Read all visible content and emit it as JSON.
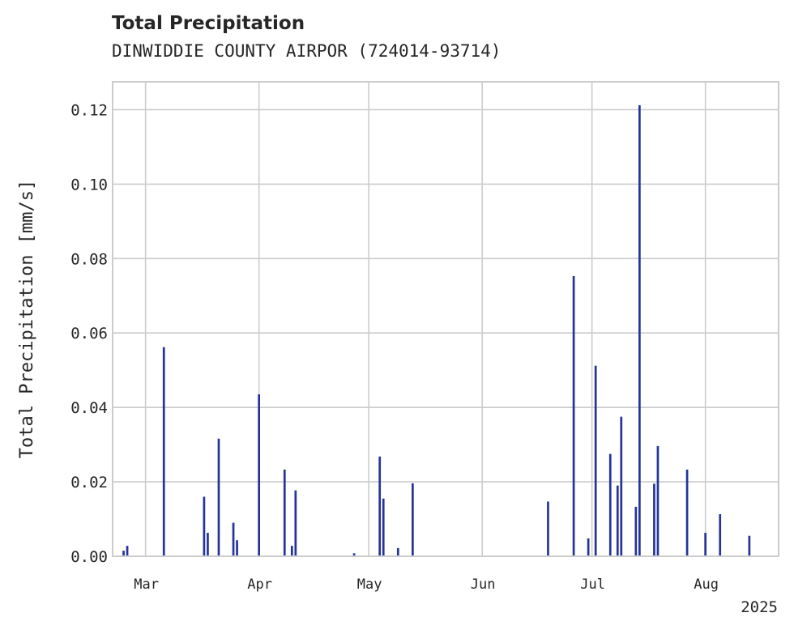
{
  "chart_data": {
    "type": "bar",
    "title": "Total Precipitation",
    "subtitle": "DINWIDDIE COUNTY AIRPOR (724014-93714)",
    "ylabel": "Total Precipitation [mm/s]",
    "xlabel": "",
    "year_label": "2025",
    "xlim": [
      "2025-02-20",
      "2025-08-21"
    ],
    "ylim": [
      0,
      0.1275
    ],
    "yticks": [
      0.0,
      0.02,
      0.04,
      0.06,
      0.08,
      0.1,
      0.12
    ],
    "ytick_labels": [
      "0.00",
      "0.02",
      "0.04",
      "0.06",
      "0.08",
      "0.10",
      "0.12"
    ],
    "xticks": [
      "2025-03-01",
      "2025-04-01",
      "2025-05-01",
      "2025-06-01",
      "2025-07-01",
      "2025-08-01"
    ],
    "xtick_labels": [
      "Mar",
      "Apr",
      "May",
      "Jun",
      "Jul",
      "Aug"
    ],
    "grid": true,
    "color": "#26349a",
    "points": [
      {
        "x": "2025-02-23",
        "y": 0.0015
      },
      {
        "x": "2025-02-24",
        "y": 0.0028
      },
      {
        "x": "2025-03-06",
        "y": 0.0562
      },
      {
        "x": "2025-03-17",
        "y": 0.016
      },
      {
        "x": "2025-03-18",
        "y": 0.0063
      },
      {
        "x": "2025-03-21",
        "y": 0.0316
      },
      {
        "x": "2025-03-25",
        "y": 0.009
      },
      {
        "x": "2025-03-26",
        "y": 0.0043
      },
      {
        "x": "2025-04-01",
        "y": 0.0435
      },
      {
        "x": "2025-04-08",
        "y": 0.0233
      },
      {
        "x": "2025-04-10",
        "y": 0.0028
      },
      {
        "x": "2025-04-11",
        "y": 0.0177
      },
      {
        "x": "2025-04-27",
        "y": 0.0008
      },
      {
        "x": "2025-05-04",
        "y": 0.0268
      },
      {
        "x": "2025-05-05",
        "y": 0.0155
      },
      {
        "x": "2025-05-09",
        "y": 0.0022
      },
      {
        "x": "2025-05-13",
        "y": 0.0196
      },
      {
        "x": "2025-06-19",
        "y": 0.0147
      },
      {
        "x": "2025-06-26",
        "y": 0.0753
      },
      {
        "x": "2025-06-30",
        "y": 0.0048
      },
      {
        "x": "2025-07-02",
        "y": 0.0512
      },
      {
        "x": "2025-07-06",
        "y": 0.0275
      },
      {
        "x": "2025-07-08",
        "y": 0.019
      },
      {
        "x": "2025-07-09",
        "y": 0.0375
      },
      {
        "x": "2025-07-13",
        "y": 0.0133
      },
      {
        "x": "2025-07-14",
        "y": 0.1212
      },
      {
        "x": "2025-07-18",
        "y": 0.0195
      },
      {
        "x": "2025-07-19",
        "y": 0.0296
      },
      {
        "x": "2025-07-27",
        "y": 0.0233
      },
      {
        "x": "2025-08-01",
        "y": 0.0063
      },
      {
        "x": "2025-08-05",
        "y": 0.0113
      },
      {
        "x": "2025-08-13",
        "y": 0.0055
      }
    ]
  }
}
